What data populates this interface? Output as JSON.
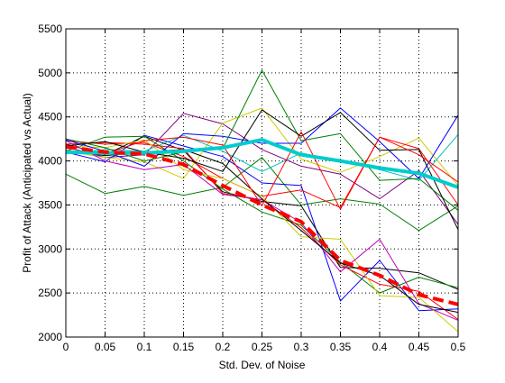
{
  "chart_data": {
    "type": "line",
    "xlabel": "Std. Dev. of Noise",
    "ylabel": "Profit of Attack (Anticipated vs Actual)",
    "xlim": [
      0,
      0.5
    ],
    "ylim": [
      2000,
      5500
    ],
    "x_ticks": [
      0,
      0.05,
      0.1,
      0.15,
      0.2,
      0.25,
      0.3,
      0.35,
      0.4,
      0.45,
      0.5
    ],
    "x_tick_labels": [
      "0",
      "0.05",
      "0.1",
      "0.15",
      "0.2",
      "0.25",
      "0.3",
      "0.35",
      "0.4",
      "0.45",
      "0.5"
    ],
    "y_ticks": [
      2000,
      2500,
      3000,
      3500,
      4000,
      4500,
      5000,
      5500
    ],
    "y_tick_labels": [
      "2000",
      "2500",
      "3000",
      "3500",
      "4000",
      "4500",
      "5000",
      "5500"
    ],
    "grid": "dotted",
    "x": [
      0,
      0.05,
      0.1,
      0.15,
      0.2,
      0.25,
      0.3,
      0.35,
      0.4,
      0.45,
      0.5
    ],
    "series": [
      {
        "color": "#007f00",
        "width": 1,
        "style": "solid",
        "values": [
          3850,
          3630,
          3710,
          3610,
          3700,
          4040,
          3500,
          3570,
          3510,
          3210,
          3490
        ]
      },
      {
        "color": "#7f007f",
        "width": 1,
        "style": "solid",
        "values": [
          4160,
          4040,
          4070,
          4540,
          4420,
          4130,
          3940,
          3850,
          3570,
          3890,
          3280
        ]
      },
      {
        "color": "#0000ff",
        "width": 1,
        "style": "solid",
        "values": [
          4100,
          3990,
          4290,
          4170,
          4050,
          3750,
          3720,
          2410,
          2870,
          2300,
          2320
        ]
      },
      {
        "color": "#cccc00",
        "width": 1,
        "style": "solid",
        "values": [
          4110,
          4040,
          3990,
          3800,
          4430,
          4600,
          4020,
          3870,
          4050,
          4260,
          3720
        ]
      },
      {
        "color": "#ff0000",
        "width": 1,
        "style": "solid",
        "values": [
          4230,
          4190,
          4210,
          4050,
          3800,
          3600,
          3670,
          3470,
          4270,
          4140,
          3500
        ]
      },
      {
        "color": "#00bfbf",
        "width": 1,
        "style": "solid",
        "values": [
          4080,
          4130,
          4110,
          4290,
          4110,
          3880,
          4090,
          4000,
          3900,
          3780,
          4300
        ]
      },
      {
        "color": "#000000",
        "width": 1,
        "style": "solid",
        "values": [
          4190,
          4070,
          4280,
          4120,
          3650,
          3540,
          3490,
          2790,
          2780,
          2730,
          2540
        ]
      },
      {
        "color": "#007f00",
        "width": 1,
        "style": "solid",
        "values": [
          4110,
          4270,
          4280,
          4000,
          3680,
          3420,
          3270,
          2850,
          2500,
          2680,
          2560
        ]
      },
      {
        "color": "#ff0000",
        "width": 1,
        "style": "solid",
        "values": [
          4190,
          4210,
          4190,
          4140,
          3630,
          3560,
          3240,
          2820,
          2600,
          2520,
          2200
        ]
      },
      {
        "color": "#cccc00",
        "width": 1,
        "style": "solid",
        "values": [
          4170,
          4150,
          4240,
          3900,
          3800,
          3600,
          3140,
          3110,
          2470,
          2450,
          2060
        ]
      },
      {
        "color": "#bf00bf",
        "width": 1,
        "style": "solid",
        "values": [
          4230,
          4000,
          3900,
          3960,
          3620,
          3560,
          3300,
          2740,
          3110,
          2380,
          2190
        ]
      },
      {
        "color": "#000000",
        "width": 1,
        "style": "solid",
        "values": [
          4170,
          4220,
          4100,
          4130,
          3970,
          3570,
          3210,
          2840,
          2700,
          2370,
          2280
        ]
      },
      {
        "color": "#0000ff",
        "width": 1,
        "style": "solid",
        "values": [
          4240,
          4110,
          3940,
          4310,
          4280,
          4200,
          4200,
          4600,
          4220,
          3800,
          4520
        ]
      },
      {
        "color": "#007f00",
        "width": 1,
        "style": "solid",
        "values": [
          4250,
          4150,
          4000,
          4100,
          4140,
          5030,
          4230,
          4310,
          3780,
          3800,
          3440
        ]
      },
      {
        "color": "#000000",
        "width": 1,
        "style": "solid",
        "values": [
          4120,
          4060,
          4100,
          4030,
          3880,
          4580,
          4280,
          4550,
          4120,
          4130,
          3220
        ]
      },
      {
        "color": "#ff0000",
        "width": 1,
        "style": "solid",
        "values": [
          4110,
          4080,
          4230,
          4270,
          4180,
          3490,
          4330,
          3450,
          4270,
          4070,
          3760
        ]
      },
      {
        "color": "#00cccc",
        "width": 4,
        "style": "solid",
        "values": [
          4100,
          4090,
          4090,
          4110,
          4150,
          4240,
          4070,
          4000,
          3920,
          3860,
          3700
        ]
      },
      {
        "color": "#ff0000",
        "width": 4,
        "style": "dashed",
        "values": [
          4160,
          4100,
          4080,
          3960,
          3720,
          3500,
          3310,
          2870,
          2700,
          2480,
          2370
        ]
      }
    ]
  }
}
